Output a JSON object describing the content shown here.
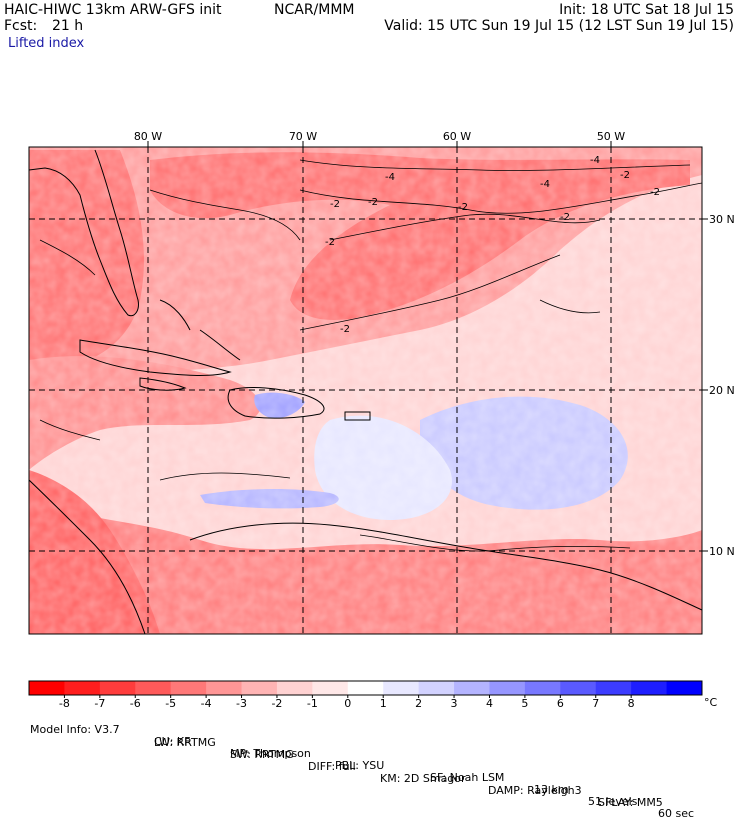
{
  "header": {
    "model": "HAIC-HIWC 13km ARW-GFS init",
    "org": "NCAR/MMM",
    "init": "Init: 18 UTC Sat 18 Jul 15",
    "fcst_label": "Fcst:",
    "fcst_value": "21 h",
    "valid": "Valid: 15 UTC Sun 19 Jul 15 (12 LST Sun 19 Jul 15)",
    "field": "Lifted index"
  },
  "map": {
    "lon_labels": [
      "80 W",
      "70 W",
      "60 W",
      "50 W"
    ],
    "lat_labels": [
      "30 N",
      "20 N",
      "10 N"
    ],
    "contour_labels": [
      "-4",
      "-2",
      "-2",
      "-2",
      "-4",
      "-2",
      "-2",
      "-2",
      "-2",
      "-2",
      "-4"
    ]
  },
  "colorbar": {
    "unit": "°C",
    "tick_labels": [
      "-8",
      "-7",
      "-6",
      "-5",
      "-4",
      "-3",
      "-2",
      "-1",
      "0",
      "1",
      "2",
      "3",
      "4",
      "5",
      "6",
      "7",
      "8"
    ],
    "colors": [
      "#ff0000",
      "#ff1e1e",
      "#ff3c3c",
      "#ff5a5a",
      "#ff7878",
      "#ff9696",
      "#ffb4b4",
      "#ffd2d2",
      "#ffe8e8",
      "#ffffff",
      "#e8e8ff",
      "#d2d2ff",
      "#b4b4ff",
      "#9696ff",
      "#7878ff",
      "#5a5aff",
      "#3c3cff",
      "#1e1eff",
      "#0000ff"
    ]
  },
  "footer": {
    "line1": [
      "Model Info: V3.7",
      "CU: KF",
      "MP: Thompson",
      "PBL: YSU",
      "SF: Noah LSM",
      "13 km",
      "51 levels",
      "60 sec"
    ],
    "line2": [
      "LW: RRTMG",
      "SW: RRTMG",
      "DIFF: full",
      "KM: 2D Smagor",
      "DAMP: Rayleigh3",
      "SFLAY: MM5"
    ]
  }
}
